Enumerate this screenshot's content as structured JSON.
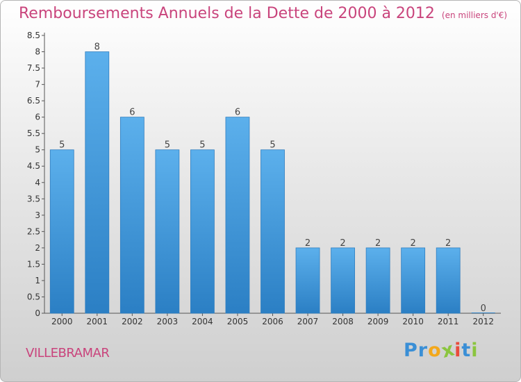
{
  "header": {
    "title": "Remboursements Annuels de la Dette de 2000 à 2012",
    "unit": "(en milliers d'€)"
  },
  "footer": {
    "commune": "VILLEBRAMAR",
    "logo_letters": [
      {
        "ch": "P",
        "color": "#3a8fd6"
      },
      {
        "ch": "r",
        "color": "#3a8fd6"
      },
      {
        "ch": "o",
        "color": "#f3a81b"
      },
      {
        "ch": "x",
        "color": "#8bc53f"
      },
      {
        "ch": "i",
        "color": "#e94b3c"
      },
      {
        "ch": "t",
        "color": "#3a8fd6"
      },
      {
        "ch": "i",
        "color": "#8bc53f"
      }
    ]
  },
  "chart_data": {
    "type": "bar",
    "title": "Remboursements Annuels de la Dette de 2000 à 2012",
    "subtitle": "(en milliers d'€)",
    "xlabel": "",
    "ylabel": "",
    "categories": [
      "2000",
      "2001",
      "2002",
      "2003",
      "2004",
      "2005",
      "2006",
      "2007",
      "2008",
      "2009",
      "2010",
      "2011",
      "2012"
    ],
    "values": [
      5,
      8,
      6,
      5,
      5,
      6,
      5,
      2,
      2,
      2,
      2,
      2,
      0
    ],
    "value_labels": [
      "5",
      "8",
      "6",
      "5",
      "5",
      "6",
      "5",
      "2",
      "2",
      "2",
      "2",
      "2",
      "0"
    ],
    "ylim": [
      0,
      8.5
    ],
    "yticks": [
      0,
      0.5,
      1,
      1.5,
      2,
      2.5,
      3,
      3.5,
      4,
      4.5,
      5,
      5.5,
      6,
      6.5,
      7,
      7.5,
      8,
      8.5
    ],
    "ytick_labels": [
      "0",
      "0.5",
      "1",
      "1.5",
      "2",
      "2.5",
      "3",
      "3.5",
      "4",
      "4.5",
      "5",
      "5.5",
      "6",
      "6.5",
      "7",
      "7.5",
      "8",
      "8.5"
    ],
    "grid": false,
    "bar_color": "#4a9fdf"
  }
}
